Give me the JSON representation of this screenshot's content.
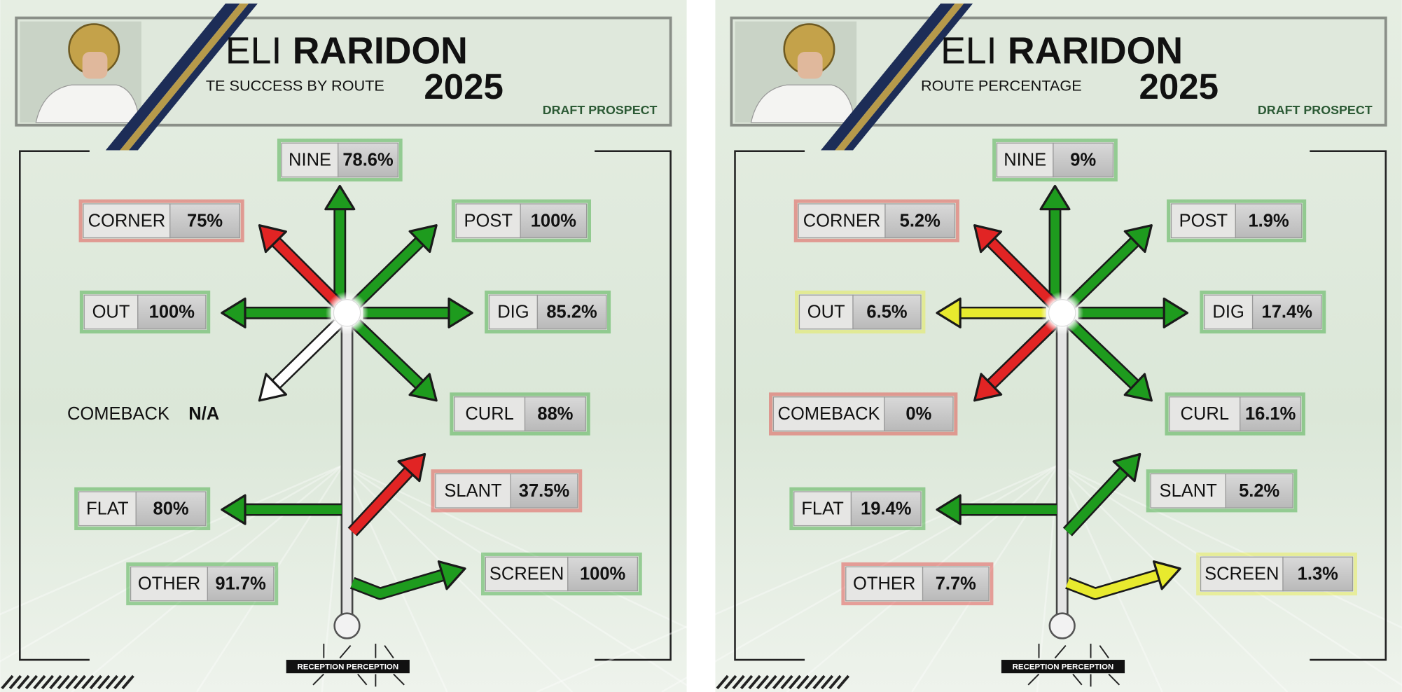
{
  "panels": [
    {
      "name_first": "ELI",
      "name_last": "RARIDON",
      "subtitle": "TE SUCCESS BY ROUTE",
      "year": "2025",
      "badge": "DRAFT PROSPECT",
      "brand": "RECEPTION PERCEPTION",
      "routes": [
        {
          "label": "NINE",
          "value": "78.6%",
          "color": "#1e9b1e"
        },
        {
          "label": "CORNER",
          "value": "75%",
          "color": "#e12424"
        },
        {
          "label": "POST",
          "value": "100%",
          "color": "#1e9b1e"
        },
        {
          "label": "OUT",
          "value": "100%",
          "color": "#1e9b1e"
        },
        {
          "label": "DIG",
          "value": "85.2%",
          "color": "#1e9b1e"
        },
        {
          "label": "COMEBACK",
          "value": "N/A",
          "color": "#ffffff",
          "boxed": false
        },
        {
          "label": "CURL",
          "value": "88%",
          "color": "#1e9b1e"
        },
        {
          "label": "SLANT",
          "value": "37.5%",
          "color": "#e12424"
        },
        {
          "label": "FLAT",
          "value": "80%",
          "color": "#1e9b1e"
        },
        {
          "label": "OTHER",
          "value": "91.7%",
          "color": "#1e9b1e"
        },
        {
          "label": "SCREEN",
          "value": "100%",
          "color": "#1e9b1e"
        }
      ]
    },
    {
      "name_first": "ELI",
      "name_last": "RARIDON",
      "subtitle": "ROUTE PERCENTAGE",
      "year": "2025",
      "badge": "DRAFT PROSPECT",
      "brand": "RECEPTION PERCEPTION",
      "routes": [
        {
          "label": "NINE",
          "value": "9%",
          "color": "#1e9b1e"
        },
        {
          "label": "CORNER",
          "value": "5.2%",
          "color": "#e12424"
        },
        {
          "label": "POST",
          "value": "1.9%",
          "color": "#1e9b1e"
        },
        {
          "label": "OUT",
          "value": "6.5%",
          "color": "#e8ea2e"
        },
        {
          "label": "DIG",
          "value": "17.4%",
          "color": "#1e9b1e"
        },
        {
          "label": "COMEBACK",
          "value": "0%",
          "color": "#e12424"
        },
        {
          "label": "CURL",
          "value": "16.1%",
          "color": "#1e9b1e"
        },
        {
          "label": "SLANT",
          "value": "5.2%",
          "color": "#1e9b1e"
        },
        {
          "label": "FLAT",
          "value": "19.4%",
          "color": "#1e9b1e"
        },
        {
          "label": "OTHER",
          "value": "7.7%",
          "color": "#e12424"
        },
        {
          "label": "SCREEN",
          "value": "1.3%",
          "color": "#e8ea2e"
        }
      ]
    }
  ]
}
